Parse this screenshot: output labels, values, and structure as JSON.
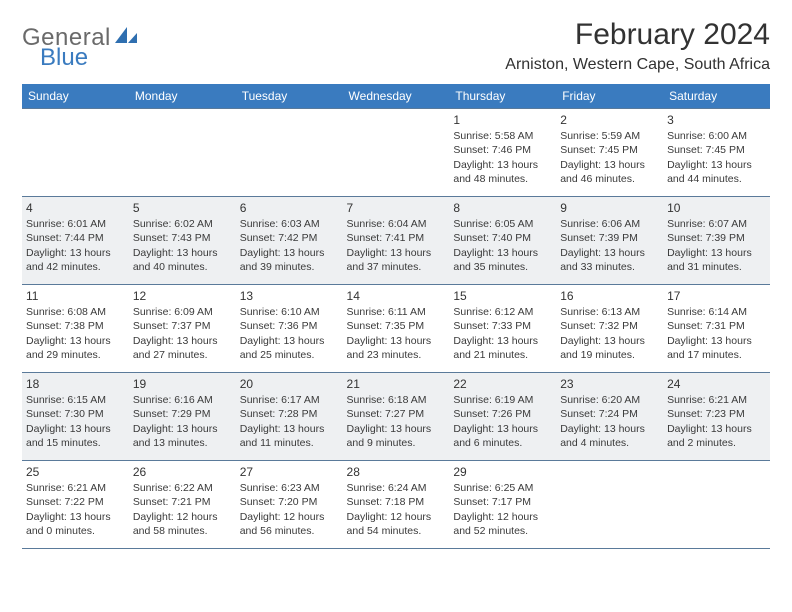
{
  "brand": {
    "part1": "General",
    "part2": "Blue"
  },
  "title": "February 2024",
  "location": "Arniston, Western Cape, South Africa",
  "colors": {
    "header_bg": "#3a7bbf",
    "header_text": "#ffffff",
    "alt_row_bg": "#eef0f2",
    "border": "#5a7a9a",
    "logo_gray": "#6a6a6a",
    "logo_blue": "#3a7bbf"
  },
  "day_headers": [
    "Sunday",
    "Monday",
    "Tuesday",
    "Wednesday",
    "Thursday",
    "Friday",
    "Saturday"
  ],
  "weeks": [
    [
      null,
      null,
      null,
      null,
      {
        "n": "1",
        "sr": "Sunrise: 5:58 AM",
        "ss": "Sunset: 7:46 PM",
        "dl": "Daylight: 13 hours and 48 minutes."
      },
      {
        "n": "2",
        "sr": "Sunrise: 5:59 AM",
        "ss": "Sunset: 7:45 PM",
        "dl": "Daylight: 13 hours and 46 minutes."
      },
      {
        "n": "3",
        "sr": "Sunrise: 6:00 AM",
        "ss": "Sunset: 7:45 PM",
        "dl": "Daylight: 13 hours and 44 minutes."
      }
    ],
    [
      {
        "n": "4",
        "sr": "Sunrise: 6:01 AM",
        "ss": "Sunset: 7:44 PM",
        "dl": "Daylight: 13 hours and 42 minutes."
      },
      {
        "n": "5",
        "sr": "Sunrise: 6:02 AM",
        "ss": "Sunset: 7:43 PM",
        "dl": "Daylight: 13 hours and 40 minutes."
      },
      {
        "n": "6",
        "sr": "Sunrise: 6:03 AM",
        "ss": "Sunset: 7:42 PM",
        "dl": "Daylight: 13 hours and 39 minutes."
      },
      {
        "n": "7",
        "sr": "Sunrise: 6:04 AM",
        "ss": "Sunset: 7:41 PM",
        "dl": "Daylight: 13 hours and 37 minutes."
      },
      {
        "n": "8",
        "sr": "Sunrise: 6:05 AM",
        "ss": "Sunset: 7:40 PM",
        "dl": "Daylight: 13 hours and 35 minutes."
      },
      {
        "n": "9",
        "sr": "Sunrise: 6:06 AM",
        "ss": "Sunset: 7:39 PM",
        "dl": "Daylight: 13 hours and 33 minutes."
      },
      {
        "n": "10",
        "sr": "Sunrise: 6:07 AM",
        "ss": "Sunset: 7:39 PM",
        "dl": "Daylight: 13 hours and 31 minutes."
      }
    ],
    [
      {
        "n": "11",
        "sr": "Sunrise: 6:08 AM",
        "ss": "Sunset: 7:38 PM",
        "dl": "Daylight: 13 hours and 29 minutes."
      },
      {
        "n": "12",
        "sr": "Sunrise: 6:09 AM",
        "ss": "Sunset: 7:37 PM",
        "dl": "Daylight: 13 hours and 27 minutes."
      },
      {
        "n": "13",
        "sr": "Sunrise: 6:10 AM",
        "ss": "Sunset: 7:36 PM",
        "dl": "Daylight: 13 hours and 25 minutes."
      },
      {
        "n": "14",
        "sr": "Sunrise: 6:11 AM",
        "ss": "Sunset: 7:35 PM",
        "dl": "Daylight: 13 hours and 23 minutes."
      },
      {
        "n": "15",
        "sr": "Sunrise: 6:12 AM",
        "ss": "Sunset: 7:33 PM",
        "dl": "Daylight: 13 hours and 21 minutes."
      },
      {
        "n": "16",
        "sr": "Sunrise: 6:13 AM",
        "ss": "Sunset: 7:32 PM",
        "dl": "Daylight: 13 hours and 19 minutes."
      },
      {
        "n": "17",
        "sr": "Sunrise: 6:14 AM",
        "ss": "Sunset: 7:31 PM",
        "dl": "Daylight: 13 hours and 17 minutes."
      }
    ],
    [
      {
        "n": "18",
        "sr": "Sunrise: 6:15 AM",
        "ss": "Sunset: 7:30 PM",
        "dl": "Daylight: 13 hours and 15 minutes."
      },
      {
        "n": "19",
        "sr": "Sunrise: 6:16 AM",
        "ss": "Sunset: 7:29 PM",
        "dl": "Daylight: 13 hours and 13 minutes."
      },
      {
        "n": "20",
        "sr": "Sunrise: 6:17 AM",
        "ss": "Sunset: 7:28 PM",
        "dl": "Daylight: 13 hours and 11 minutes."
      },
      {
        "n": "21",
        "sr": "Sunrise: 6:18 AM",
        "ss": "Sunset: 7:27 PM",
        "dl": "Daylight: 13 hours and 9 minutes."
      },
      {
        "n": "22",
        "sr": "Sunrise: 6:19 AM",
        "ss": "Sunset: 7:26 PM",
        "dl": "Daylight: 13 hours and 6 minutes."
      },
      {
        "n": "23",
        "sr": "Sunrise: 6:20 AM",
        "ss": "Sunset: 7:24 PM",
        "dl": "Daylight: 13 hours and 4 minutes."
      },
      {
        "n": "24",
        "sr": "Sunrise: 6:21 AM",
        "ss": "Sunset: 7:23 PM",
        "dl": "Daylight: 13 hours and 2 minutes."
      }
    ],
    [
      {
        "n": "25",
        "sr": "Sunrise: 6:21 AM",
        "ss": "Sunset: 7:22 PM",
        "dl": "Daylight: 13 hours and 0 minutes."
      },
      {
        "n": "26",
        "sr": "Sunrise: 6:22 AM",
        "ss": "Sunset: 7:21 PM",
        "dl": "Daylight: 12 hours and 58 minutes."
      },
      {
        "n": "27",
        "sr": "Sunrise: 6:23 AM",
        "ss": "Sunset: 7:20 PM",
        "dl": "Daylight: 12 hours and 56 minutes."
      },
      {
        "n": "28",
        "sr": "Sunrise: 6:24 AM",
        "ss": "Sunset: 7:18 PM",
        "dl": "Daylight: 12 hours and 54 minutes."
      },
      {
        "n": "29",
        "sr": "Sunrise: 6:25 AM",
        "ss": "Sunset: 7:17 PM",
        "dl": "Daylight: 12 hours and 52 minutes."
      },
      null,
      null
    ]
  ]
}
